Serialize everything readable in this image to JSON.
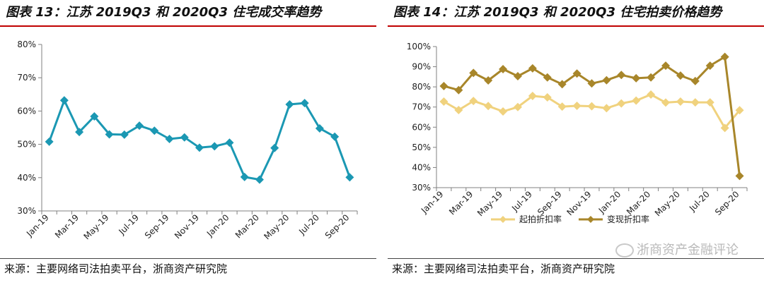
{
  "left": {
    "title": "图表 13：江苏 2019Q3 和 2020Q3 住宅成交率趋势",
    "source": "来源：主要网络司法拍卖平台，浙商资产研究院"
  },
  "right": {
    "title": "图表 14：江苏 2019Q3 和 2020Q3 住宅拍卖价格趋势",
    "source": "来源：主要网络司法拍卖平台，浙商资产研究院",
    "watermark": "浙商资产金融评论"
  },
  "colors": {
    "title_rule": "#c00000",
    "series_teal": "#1b98b3",
    "series_light_gold": "#f0d27e",
    "series_dark_gold": "#a8862a"
  },
  "chart_data": [
    {
      "type": "line",
      "title": "",
      "x": [
        "Jan-19",
        "Feb-19",
        "Mar-19",
        "Apr-19",
        "May-19",
        "Jun-19",
        "Jul-19",
        "Aug-19",
        "Sep-19",
        "Oct-19",
        "Nov-19",
        "Dec-19",
        "Jan-20",
        "Feb-20",
        "Mar-20",
        "Apr-20",
        "May-20",
        "Jun-20",
        "Jul-20",
        "Aug-20",
        "Sep-20"
      ],
      "x_tick_labels": [
        "Jan-19",
        "Mar-19",
        "May-19",
        "Jul-19",
        "Sep-19",
        "Nov-19",
        "Jan-20",
        "Mar-20",
        "May-20",
        "Jul-20",
        "Sep-20"
      ],
      "series": [
        {
          "values": [
            50.8,
            63.2,
            53.7,
            58.4,
            53.0,
            52.9,
            55.6,
            54.1,
            51.6,
            52.1,
            49.0,
            49.4,
            50.5,
            40.2,
            39.4,
            48.9,
            62.0,
            62.4,
            54.8,
            52.3,
            40.1
          ]
        }
      ],
      "y_tick_labels": [
        "30%",
        "40%",
        "50%",
        "60%",
        "70%",
        "80%"
      ],
      "ylim": [
        30,
        80
      ],
      "grid": false,
      "legend": "none"
    },
    {
      "type": "line",
      "title": "",
      "x": [
        "Jan-19",
        "Feb-19",
        "Mar-19",
        "Apr-19",
        "May-19",
        "Jun-19",
        "Jul-19",
        "Aug-19",
        "Sep-19",
        "Oct-19",
        "Nov-19",
        "Dec-19",
        "Jan-20",
        "Feb-20",
        "Mar-20",
        "Apr-20",
        "May-20",
        "Jun-20",
        "Jul-20",
        "Aug-20",
        "Sep-20"
      ],
      "x_tick_labels": [
        "Jan-19",
        "Mar-19",
        "May-19",
        "Jul-19",
        "Sep-19",
        "Nov-19",
        "Jan-20",
        "Mar-20",
        "May-20",
        "Jul-20",
        "Sep-20"
      ],
      "series": [
        {
          "name": "起拍折扣率",
          "values": [
            72.7,
            68.5,
            73.0,
            70.5,
            67.8,
            70.0,
            75.5,
            74.8,
            70.2,
            70.6,
            70.4,
            69.4,
            71.8,
            73.2,
            76.2,
            72.2,
            72.7,
            72.3,
            72.3,
            59.6,
            68.4
          ]
        },
        {
          "name": "变现折扣率",
          "values": [
            80.4,
            78.4,
            86.9,
            83.2,
            88.8,
            85.3,
            89.2,
            84.7,
            81.3,
            86.6,
            81.7,
            83.3,
            85.9,
            84.3,
            84.7,
            90.5,
            85.6,
            82.9,
            90.5,
            94.9,
            35.8
          ]
        }
      ],
      "y_tick_labels": [
        "30%",
        "40%",
        "50%",
        "60%",
        "70%",
        "80%",
        "90%",
        "100%"
      ],
      "ylim": [
        30,
        100
      ],
      "grid": false,
      "legend": "bottom"
    }
  ]
}
